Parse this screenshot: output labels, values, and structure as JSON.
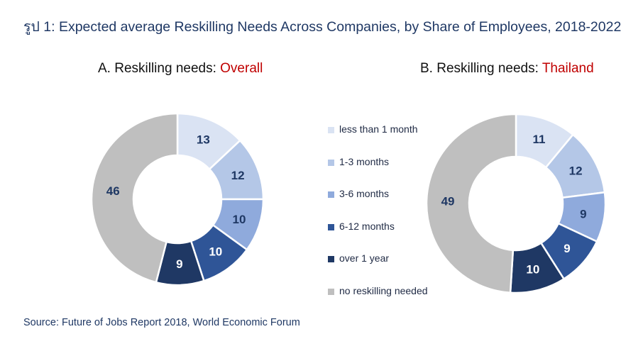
{
  "title": "รูป 1: Expected average Reskilling Needs Across Companies, by Share of Employees, 2018-2022",
  "colors": {
    "less than 1 month": "#dae3f3",
    "1-3 months": "#b4c7e7",
    "3-6 months": "#8faadc",
    "6-12 months": "#2f5597",
    "over 1 year": "#1f3864",
    "no reskilling needed": "#bfbfbf"
  },
  "legend": [
    "less than 1 month",
    "1-3 months",
    "3-6 months",
    "6-12 months",
    "over 1 year",
    "no reskilling needed"
  ],
  "source": "Source: Future of Jobs Report 2018, World Economic Forum",
  "chart_data": [
    {
      "type": "pie",
      "donut": true,
      "title_prefix": "A. Reskilling needs: ",
      "title_highlight": "Overall",
      "categories": [
        "less than 1 month",
        "1-3 months",
        "3-6 months",
        "6-12 months",
        "over 1 year",
        "no reskilling needed"
      ],
      "values": [
        13,
        12,
        10,
        10,
        9,
        46
      ]
    },
    {
      "type": "pie",
      "donut": true,
      "title_prefix": "B. Reskilling needs: ",
      "title_highlight": "Thailand",
      "categories": [
        "less than 1 month",
        "1-3 months",
        "3-6 months",
        "6-12 months",
        "over 1 year",
        "no reskilling needed"
      ],
      "values": [
        11,
        12,
        9,
        9,
        10,
        49
      ]
    }
  ]
}
